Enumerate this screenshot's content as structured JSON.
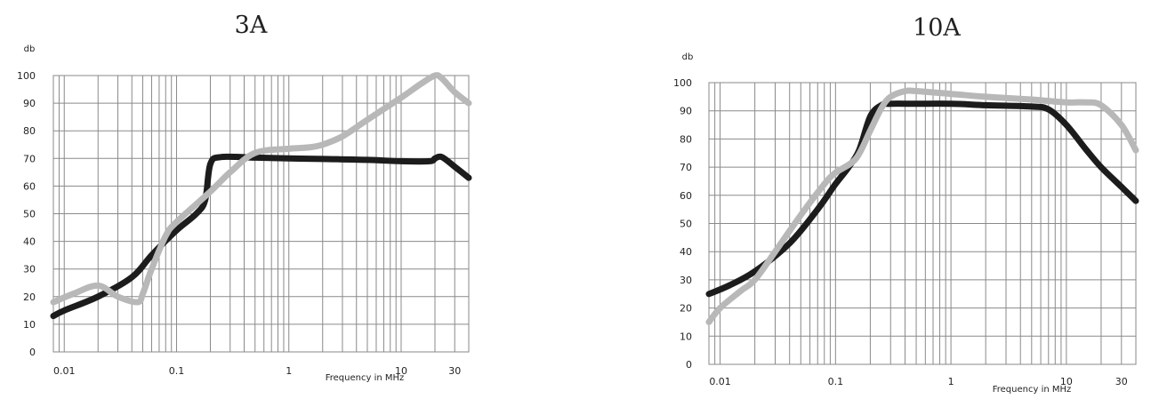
{
  "chart_data": [
    {
      "type": "line",
      "title": "3A",
      "ylabel": "db",
      "xlabel": "Frequency in MHz",
      "xscale": "log",
      "xlim": [
        0.008,
        40
      ],
      "ylim": [
        0,
        100
      ],
      "xticks": [
        0.01,
        0.1,
        1,
        10,
        30
      ],
      "xtick_labels": [
        "0.01",
        "0.1",
        "1",
        "10",
        "30"
      ],
      "yticks": [
        0,
        10,
        20,
        30,
        40,
        50,
        60,
        70,
        80,
        90,
        100
      ],
      "ytick_labels": [
        "0",
        "10",
        "20",
        "30",
        "40",
        "50",
        "60",
        "70",
        "80",
        "90",
        "100"
      ],
      "grid": true,
      "series": [
        {
          "color": "#1c1c1c",
          "x": [
            0.008,
            0.01,
            0.02,
            0.04,
            0.06,
            0.1,
            0.15,
            0.18,
            0.2,
            0.25,
            0.5,
            1,
            2,
            5,
            10,
            18,
            20,
            23,
            30,
            40
          ],
          "y": [
            13,
            15,
            20,
            27,
            35,
            44,
            50,
            55,
            68,
            70.5,
            70.3,
            70,
            69.8,
            69.5,
            69,
            69,
            70,
            70.5,
            67,
            63
          ]
        },
        {
          "color": "#b8b8b8",
          "x": [
            0.008,
            0.012,
            0.02,
            0.03,
            0.045,
            0.05,
            0.06,
            0.08,
            0.1,
            0.2,
            0.3,
            0.5,
            1,
            1.5,
            2,
            3,
            5,
            10,
            15,
            20,
            23,
            30,
            40
          ],
          "y": [
            18,
            21,
            24,
            20,
            18,
            21,
            30,
            42,
            47,
            58,
            65,
            72,
            73.5,
            74,
            75,
            78,
            84,
            92,
            97,
            100,
            99,
            94,
            90
          ]
        }
      ]
    },
    {
      "type": "line",
      "title": "10A",
      "ylabel": "db",
      "xlabel": "Frequency in MHz",
      "xscale": "log",
      "xlim": [
        0.008,
        40
      ],
      "ylim": [
        0,
        100
      ],
      "xticks": [
        0.01,
        0.1,
        1,
        10,
        30
      ],
      "xtick_labels": [
        "0.01",
        "0.1",
        "1",
        "10",
        "30"
      ],
      "yticks": [
        0,
        10,
        20,
        30,
        40,
        50,
        60,
        70,
        80,
        90,
        100
      ],
      "ytick_labels": [
        "0",
        "10",
        "20",
        "30",
        "40",
        "50",
        "60",
        "70",
        "80",
        "90",
        "100"
      ],
      "grid": true,
      "series": [
        {
          "color": "#1c1c1c",
          "x": [
            0.008,
            0.012,
            0.02,
            0.04,
            0.07,
            0.1,
            0.13,
            0.16,
            0.2,
            0.25,
            0.3,
            0.5,
            1,
            2,
            5,
            7,
            10,
            15,
            20,
            30,
            40
          ],
          "y": [
            25,
            28,
            33,
            43,
            55,
            64,
            70,
            76,
            88,
            92,
            92.5,
            92.5,
            92.5,
            92,
            91.5,
            90.5,
            85,
            76,
            70,
            63,
            58
          ]
        },
        {
          "color": "#b8b8b8",
          "x": [
            0.008,
            0.01,
            0.015,
            0.02,
            0.03,
            0.05,
            0.08,
            0.1,
            0.15,
            0.2,
            0.25,
            0.3,
            0.4,
            0.5,
            1,
            2,
            5,
            10,
            15,
            20,
            30,
            40
          ],
          "y": [
            15,
            20,
            26,
            30,
            40,
            53,
            64,
            68,
            73,
            83,
            91,
            95,
            97,
            97,
            96,
            95,
            94,
            93,
            93,
            92,
            85,
            76
          ]
        }
      ]
    }
  ]
}
